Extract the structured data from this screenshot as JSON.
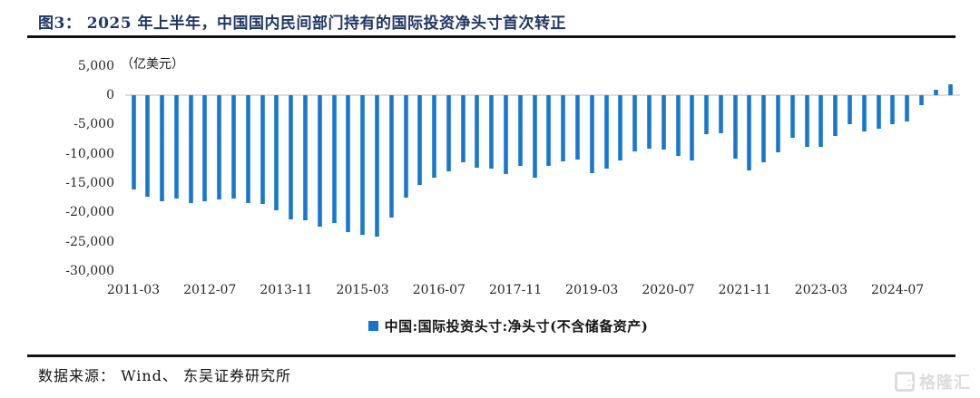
{
  "figure": {
    "title": "图3：  2025 年上半年，中国国内民间部门持有的国际投资净头寸首次转正",
    "unit_label": "（亿美元）",
    "source_label": "数据来源： Wind、 东吴证券研究所",
    "watermark_text": "格隆汇",
    "title_color": "#1f3864",
    "accent_color": "#1373cd"
  },
  "chart_data": {
    "type": "bar",
    "title": "2025 年上半年，中国国内民间部门持有的国际投资净头寸首次转正",
    "unit": "亿美元",
    "legend": [
      "中国:国际投资头寸:净头寸(不含储备资产)"
    ],
    "legend_position": "bottom",
    "grid": false,
    "bar_color": "#1373cd",
    "ylim": [
      -30000,
      5000
    ],
    "y_ticks": [
      {
        "label": "5,000",
        "value": 5000
      },
      {
        "label": "0",
        "value": 0
      },
      {
        "label": "-5,000",
        "value": -5000
      },
      {
        "label": "-10,000",
        "value": -10000
      },
      {
        "label": "-15,000",
        "value": -15000
      },
      {
        "label": "-20,000",
        "value": -20000
      },
      {
        "label": "-25,000",
        "value": -25000
      },
      {
        "label": "-30,000",
        "value": -30000
      }
    ],
    "x_tick_labels": [
      "2011-03",
      "2012-07",
      "2013-11",
      "2015-03",
      "2016-07",
      "2017-11",
      "2019-03",
      "2020-07",
      "2021-11",
      "2023-03",
      "2024-07"
    ],
    "x_tick_interval_months": 16,
    "x": [
      "2011-03",
      "2011-06",
      "2011-09",
      "2011-12",
      "2012-03",
      "2012-06",
      "2012-09",
      "2012-12",
      "2013-03",
      "2013-06",
      "2013-09",
      "2013-12",
      "2014-03",
      "2014-06",
      "2014-09",
      "2014-12",
      "2015-03",
      "2015-06",
      "2015-09",
      "2015-12",
      "2016-03",
      "2016-06",
      "2016-09",
      "2016-12",
      "2017-03",
      "2017-06",
      "2017-09",
      "2017-12",
      "2018-03",
      "2018-06",
      "2018-09",
      "2018-12",
      "2019-03",
      "2019-06",
      "2019-09",
      "2019-12",
      "2020-03",
      "2020-06",
      "2020-09",
      "2020-12",
      "2021-03",
      "2021-06",
      "2021-09",
      "2021-12",
      "2022-03",
      "2022-06",
      "2022-09",
      "2022-12",
      "2023-03",
      "2023-06",
      "2023-09",
      "2023-12",
      "2024-03",
      "2024-06",
      "2024-09",
      "2024-12",
      "2025-03",
      "2025-06"
    ],
    "values": [
      -16100,
      -17400,
      -18100,
      -17600,
      -18400,
      -18100,
      -17800,
      -17600,
      -18400,
      -18600,
      -19700,
      -21200,
      -21300,
      -22500,
      -21800,
      -23300,
      -23800,
      -24200,
      -20900,
      -17500,
      -15400,
      -14100,
      -13000,
      -11400,
      -12400,
      -12600,
      -13400,
      -12100,
      -14100,
      -12100,
      -11300,
      -11000,
      -13300,
      -12600,
      -11200,
      -9600,
      -9100,
      -9300,
      -10300,
      -11100,
      -6700,
      -6500,
      -10900,
      -12800,
      -11400,
      -9800,
      -7300,
      -8900,
      -8900,
      -6900,
      -4900,
      -6200,
      -5800,
      -5000,
      -4500,
      -1700,
      900,
      1800
    ]
  }
}
